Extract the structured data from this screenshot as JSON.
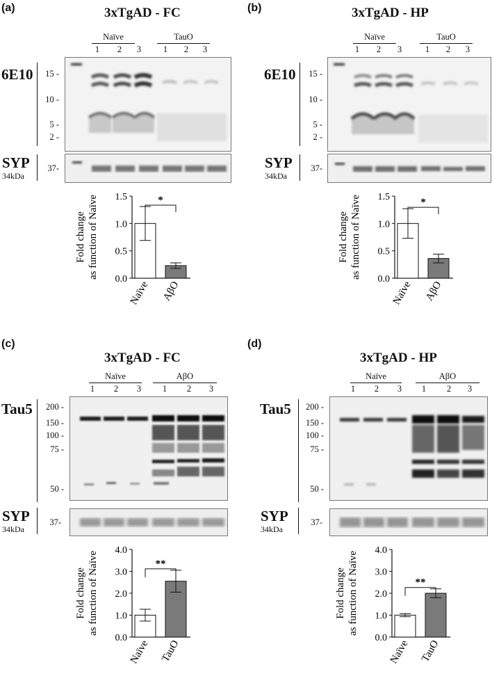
{
  "panels": [
    {
      "letter": "(a)",
      "title": "3xTgAD - FC",
      "group_left": "Naïve",
      "group_right": "TauO",
      "lanes": [
        "1",
        "2",
        "3",
        "1",
        "2",
        "3"
      ],
      "antibody": "6E10",
      "markers": [
        "15 -",
        "10 -",
        "5 -",
        "2 -"
      ],
      "loading": "SYP",
      "loading_kda": "34kDa",
      "loading_marker": "37-"
    },
    {
      "letter": "(b)",
      "title": "3xTgAD - HP",
      "group_left": "Naïve",
      "group_right": "TauO",
      "lanes": [
        "1",
        "2",
        "3",
        "1",
        "2",
        "3"
      ],
      "antibody": "6E10",
      "markers": [
        "15 -",
        "10 -",
        "5 -",
        "2 -"
      ],
      "loading": "SYP",
      "loading_kda": "34kDa",
      "loading_marker": "37-"
    },
    {
      "letter": "(c)",
      "title": "3xTgAD - FC",
      "group_left": "Naïve",
      "group_right": "AβO",
      "lanes": [
        "1",
        "2",
        "3",
        "1",
        "2",
        "3"
      ],
      "antibody": "Tau5",
      "markers": [
        "200 -",
        "150 -",
        "100 -",
        "75 -",
        "50 -"
      ],
      "loading": "SYP",
      "loading_kda": "34kDa",
      "loading_marker": "37-"
    },
    {
      "letter": "(d)",
      "title": "3xTgAD - HP",
      "group_left": "Naïve",
      "group_right": "AβO",
      "lanes": [
        "1",
        "2",
        "3",
        "1",
        "2",
        "3"
      ],
      "antibody": "Tau5",
      "markers": [
        "200 -",
        "150 -",
        "100 -",
        "75 -",
        "50 -"
      ],
      "loading": "SYP",
      "loading_kda": "34kDa",
      "loading_marker": "37-"
    }
  ],
  "chart_data": [
    {
      "type": "bar",
      "categories": [
        "Naïve",
        "AβO"
      ],
      "values": [
        1.0,
        0.23
      ],
      "errors": [
        0.31,
        0.05
      ],
      "significance": "*",
      "ylabel": "Fold change\nas function of Naïve",
      "ylim": [
        0,
        1.5
      ],
      "yticks": [
        "0.0",
        "0.5",
        "1.0",
        "1.5"
      ],
      "colors": [
        "#ffffff",
        "#7a7a7a"
      ]
    },
    {
      "type": "bar",
      "categories": [
        "Naïve",
        "AβO"
      ],
      "values": [
        1.0,
        0.36
      ],
      "errors": [
        0.27,
        0.08
      ],
      "significance": "*",
      "ylabel": "Fold change\nas function of Naïve",
      "ylim": [
        0,
        1.5
      ],
      "yticks": [
        "0.0",
        "0.5",
        "1.0",
        "1.5"
      ],
      "colors": [
        "#ffffff",
        "#7a7a7a"
      ]
    },
    {
      "type": "bar",
      "categories": [
        "Naïve",
        "TauO"
      ],
      "values": [
        1.0,
        2.55
      ],
      "errors": [
        0.27,
        0.5
      ],
      "significance": "**",
      "ylabel": "Fold change\nas function of Naïve",
      "ylim": [
        0,
        4.0
      ],
      "yticks": [
        "0.0",
        "1.0",
        "2.0",
        "3.0",
        "4.0"
      ],
      "colors": [
        "#ffffff",
        "#7a7a7a"
      ]
    },
    {
      "type": "bar",
      "categories": [
        "Naïve",
        "TauO"
      ],
      "values": [
        1.0,
        2.0
      ],
      "errors": [
        0.07,
        0.2
      ],
      "significance": "**",
      "ylabel": "Fold change\nas function of Naïve",
      "ylim": [
        0,
        4.0
      ],
      "yticks": [
        "0.0",
        "1.0",
        "2.0",
        "3.0",
        "4.0"
      ],
      "colors": [
        "#ffffff",
        "#7a7a7a"
      ]
    }
  ]
}
